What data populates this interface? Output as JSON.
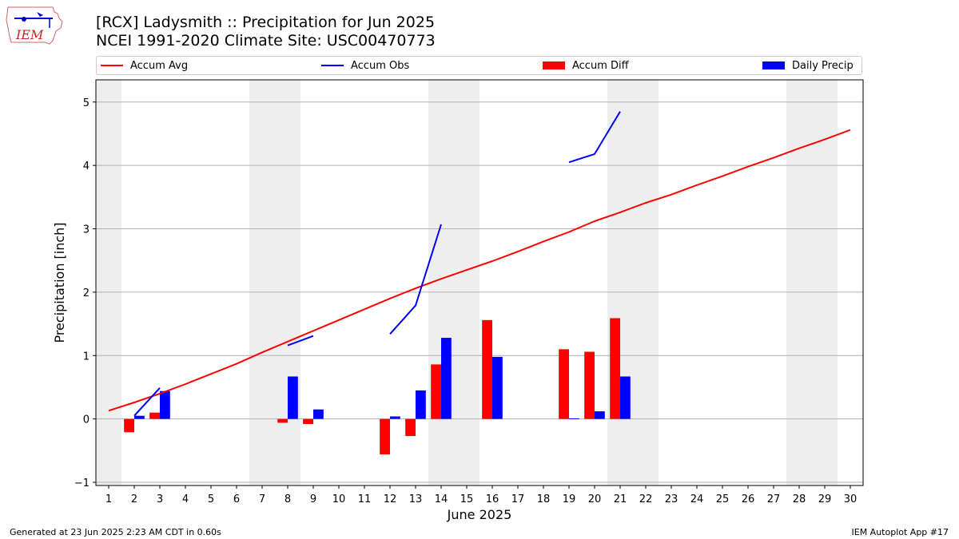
{
  "header": {
    "title_line1": "[RCX] Ladysmith :: Precipitation for Jun 2025",
    "title_line2": "NCEI 1991-2020 Climate Site: USC00470773",
    "logo_text": "IEM"
  },
  "legend": {
    "items": [
      {
        "label": "Accum Avg",
        "kind": "line",
        "color": "#ff0000"
      },
      {
        "label": "Accum Obs",
        "kind": "line",
        "color": "#0000ff"
      },
      {
        "label": "Accum Diff",
        "kind": "bar",
        "color": "#ff0000"
      },
      {
        "label": "Daily Precip",
        "kind": "bar",
        "color": "#0000ff"
      }
    ]
  },
  "footer": {
    "left": "Generated at 23 Jun 2025 2:23 AM CDT in 0.60s",
    "right": "IEM Autoplot App #17"
  },
  "chart_data": {
    "type": "bar",
    "xlabel": "June 2025",
    "ylabel": "Precipitation [inch]",
    "xlim": [
      0.5,
      30.5
    ],
    "ylim": [
      -1.05,
      5.35
    ],
    "yticks": [
      -1,
      0,
      1,
      2,
      3,
      4,
      5
    ],
    "x": [
      1,
      2,
      3,
      4,
      5,
      6,
      7,
      8,
      9,
      10,
      11,
      12,
      13,
      14,
      15,
      16,
      17,
      18,
      19,
      20,
      21,
      22,
      23,
      24,
      25,
      26,
      27,
      28,
      29,
      30
    ],
    "weekend_days": [
      1,
      7,
      8,
      14,
      15,
      21,
      22,
      28,
      29
    ],
    "grid": "horizontal",
    "legend_position": "top",
    "colors": {
      "avg": "#ff0000",
      "obs": "#0000ff",
      "diff": "#ff0000",
      "daily": "#0000ff",
      "weekend": "#eeeeee",
      "grid": "#b0b0b0"
    },
    "series": [
      {
        "name": "Accum Avg",
        "kind": "line",
        "values": [
          0.13,
          0.26,
          0.4,
          0.55,
          0.71,
          0.87,
          1.05,
          1.22,
          1.39,
          1.56,
          1.73,
          1.9,
          2.06,
          2.21,
          2.35,
          2.49,
          2.64,
          2.8,
          2.95,
          3.12,
          3.26,
          3.41,
          3.54,
          3.69,
          3.83,
          3.98,
          4.12,
          4.27,
          4.41,
          4.56
        ]
      },
      {
        "name": "Accum Obs",
        "kind": "line",
        "values": [
          null,
          0.05,
          0.49,
          null,
          null,
          null,
          null,
          1.16,
          1.31,
          null,
          null,
          1.34,
          1.79,
          3.07,
          null,
          null,
          null,
          null,
          4.05,
          4.18,
          4.85,
          null,
          null,
          null,
          null,
          null,
          null,
          null,
          null,
          null
        ]
      },
      {
        "name": "Accum Diff",
        "kind": "bar",
        "values": [
          null,
          -0.21,
          0.1,
          null,
          null,
          null,
          null,
          -0.06,
          -0.08,
          null,
          null,
          -0.56,
          -0.27,
          0.86,
          null,
          1.56,
          null,
          null,
          1.1,
          1.06,
          1.59,
          null,
          null,
          null,
          null,
          null,
          null,
          null,
          null,
          null
        ]
      },
      {
        "name": "Daily Precip",
        "kind": "bar",
        "values": [
          null,
          0.05,
          0.44,
          null,
          null,
          null,
          null,
          0.67,
          0.15,
          null,
          null,
          0.04,
          0.45,
          1.28,
          null,
          0.98,
          null,
          null,
          0.01,
          0.12,
          0.67,
          null,
          null,
          null,
          null,
          null,
          null,
          null,
          null,
          null
        ]
      }
    ]
  }
}
